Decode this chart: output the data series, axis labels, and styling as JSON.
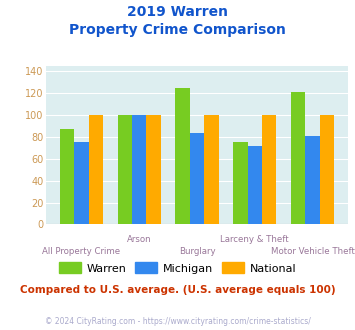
{
  "title_line1": "2019 Warren",
  "title_line2": "Property Crime Comparison",
  "categories": [
    "All Property Crime",
    "Arson",
    "Burglary",
    "Larceny & Theft",
    "Motor Vehicle Theft"
  ],
  "warren": [
    87,
    100,
    125,
    75,
    121
  ],
  "michigan": [
    75,
    100,
    84,
    72,
    81
  ],
  "national": [
    100,
    100,
    100,
    100,
    100
  ],
  "warren_color": "#77cc22",
  "michigan_color": "#3388ee",
  "national_color": "#ffaa00",
  "bg_color": "#ddeef0",
  "title_color": "#1155cc",
  "xlabel_color": "#997799",
  "legend_labels": [
    "Warren",
    "Michigan",
    "National"
  ],
  "ylim": [
    0,
    145
  ],
  "yticks": [
    0,
    20,
    40,
    60,
    80,
    100,
    120,
    140
  ],
  "footer_text": "Compared to U.S. average. (U.S. average equals 100)",
  "copyright_text": "© 2024 CityRating.com - https://www.cityrating.com/crime-statistics/",
  "footer_color": "#cc3300",
  "copyright_color": "#aaaacc",
  "ytick_color": "#cc9955"
}
